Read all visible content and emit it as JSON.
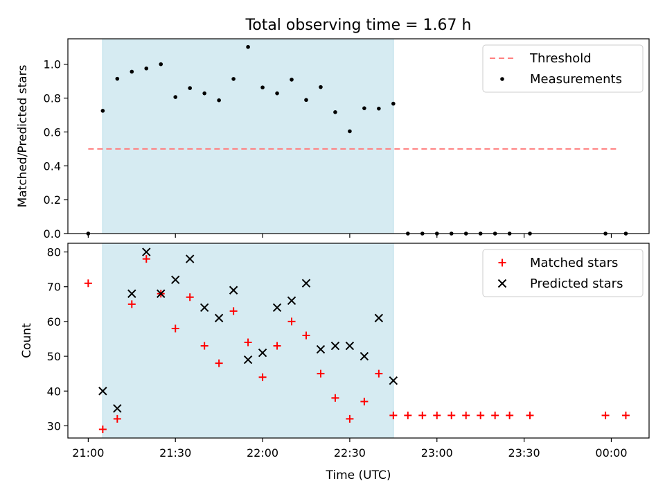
{
  "chart_data": [
    {
      "type": "scatter",
      "title": "Total observing time = 1.67 h",
      "xlabel": "",
      "ylabel": "Matched/Predicted stars",
      "xlim": [
        "20:53",
        "00:13"
      ],
      "ylim": [
        0,
        1.15
      ],
      "yticks": [
        0.0,
        0.2,
        0.4,
        0.6,
        0.8,
        1.0
      ],
      "ytick_labels": [
        "0.0",
        "0.2",
        "0.4",
        "0.6",
        "0.8",
        "1.0"
      ],
      "shaded_interval": [
        "21:05",
        "22:45"
      ],
      "shaded_color": "#add8e6",
      "threshold": {
        "name": "Threshold",
        "value": 0.5,
        "x": [
          "21:00",
          "00:02"
        ],
        "color": "#ff7f7f",
        "style": "dashed"
      },
      "series": [
        {
          "name": "Measurements",
          "color": "#000000",
          "marker": "dot",
          "points": [
            [
              "21:00",
              0.0
            ],
            [
              "21:05",
              0.725
            ],
            [
              "21:10",
              0.914
            ],
            [
              "21:15",
              0.956
            ],
            [
              "21:20",
              0.975
            ],
            [
              "21:25",
              1.0
            ],
            [
              "21:30",
              0.806
            ],
            [
              "21:35",
              0.859
            ],
            [
              "21:40",
              0.828
            ],
            [
              "21:45",
              0.787
            ],
            [
              "21:50",
              0.913
            ],
            [
              "21:55",
              1.102
            ],
            [
              "22:00",
              0.863
            ],
            [
              "22:05",
              0.828
            ],
            [
              "22:10",
              0.909
            ],
            [
              "22:15",
              0.789
            ],
            [
              "22:20",
              0.865
            ],
            [
              "22:25",
              0.717
            ],
            [
              "22:30",
              0.604
            ],
            [
              "22:35",
              0.74
            ],
            [
              "22:40",
              0.738
            ],
            [
              "22:45",
              0.767
            ],
            [
              "22:50",
              0.0
            ],
            [
              "22:55",
              0.0
            ],
            [
              "23:00",
              0.0
            ],
            [
              "23:05",
              0.0
            ],
            [
              "23:10",
              0.0
            ],
            [
              "23:15",
              0.0
            ],
            [
              "23:20",
              0.0
            ],
            [
              "23:25",
              0.0
            ],
            [
              "23:32",
              0.0
            ],
            [
              "23:58",
              0.0
            ],
            [
              "00:05",
              0.0
            ]
          ]
        }
      ],
      "legend": {
        "placement": "top-right",
        "entries": [
          "Threshold",
          "Measurements"
        ]
      }
    },
    {
      "type": "scatter",
      "title": "",
      "xlabel": "Time (UTC)",
      "ylabel": "Count",
      "xlim": [
        "20:53",
        "00:13"
      ],
      "ylim": [
        26.5,
        82.5
      ],
      "yticks": [
        30,
        40,
        50,
        60,
        70,
        80
      ],
      "xticks": [
        "21:00",
        "21:30",
        "22:00",
        "22:30",
        "23:00",
        "23:30",
        "00:00"
      ],
      "xtick_labels": [
        "21:00",
        "21:30",
        "22:00",
        "22:30",
        "23:00",
        "23:30",
        "00:00"
      ],
      "shaded_interval": [
        "21:05",
        "22:45"
      ],
      "shaded_color": "#add8e6",
      "series": [
        {
          "name": "Matched stars",
          "color": "#ff0000",
          "marker": "plus",
          "points": [
            [
              "21:00",
              71
            ],
            [
              "21:05",
              29
            ],
            [
              "21:10",
              32
            ],
            [
              "21:15",
              65
            ],
            [
              "21:20",
              78
            ],
            [
              "21:25",
              68
            ],
            [
              "21:30",
              58
            ],
            [
              "21:35",
              67
            ],
            [
              "21:40",
              53
            ],
            [
              "21:45",
              48
            ],
            [
              "21:50",
              63
            ],
            [
              "21:55",
              54
            ],
            [
              "22:00",
              44
            ],
            [
              "22:05",
              53
            ],
            [
              "22:10",
              60
            ],
            [
              "22:15",
              56
            ],
            [
              "22:20",
              45
            ],
            [
              "22:25",
              38
            ],
            [
              "22:30",
              32
            ],
            [
              "22:35",
              37
            ],
            [
              "22:40",
              45
            ],
            [
              "22:45",
              33
            ],
            [
              "22:50",
              33
            ],
            [
              "22:55",
              33
            ],
            [
              "23:00",
              33
            ],
            [
              "23:05",
              33
            ],
            [
              "23:10",
              33
            ],
            [
              "23:15",
              33
            ],
            [
              "23:20",
              33
            ],
            [
              "23:25",
              33
            ],
            [
              "23:32",
              33
            ],
            [
              "23:58",
              33
            ],
            [
              "00:05",
              33
            ]
          ]
        },
        {
          "name": "Predicted stars",
          "color": "#000000",
          "marker": "x",
          "points": [
            [
              "21:05",
              40
            ],
            [
              "21:10",
              35
            ],
            [
              "21:15",
              68
            ],
            [
              "21:20",
              80
            ],
            [
              "21:25",
              68
            ],
            [
              "21:30",
              72
            ],
            [
              "21:35",
              78
            ],
            [
              "21:40",
              64
            ],
            [
              "21:45",
              61
            ],
            [
              "21:50",
              69
            ],
            [
              "21:55",
              49
            ],
            [
              "22:00",
              51
            ],
            [
              "22:05",
              64
            ],
            [
              "22:10",
              66
            ],
            [
              "22:15",
              71
            ],
            [
              "22:20",
              52
            ],
            [
              "22:25",
              53
            ],
            [
              "22:30",
              53
            ],
            [
              "22:35",
              50
            ],
            [
              "22:40",
              61
            ],
            [
              "22:45",
              43
            ]
          ]
        }
      ],
      "legend": {
        "placement": "top-right",
        "entries": [
          "Matched stars",
          "Predicted stars"
        ]
      }
    }
  ]
}
